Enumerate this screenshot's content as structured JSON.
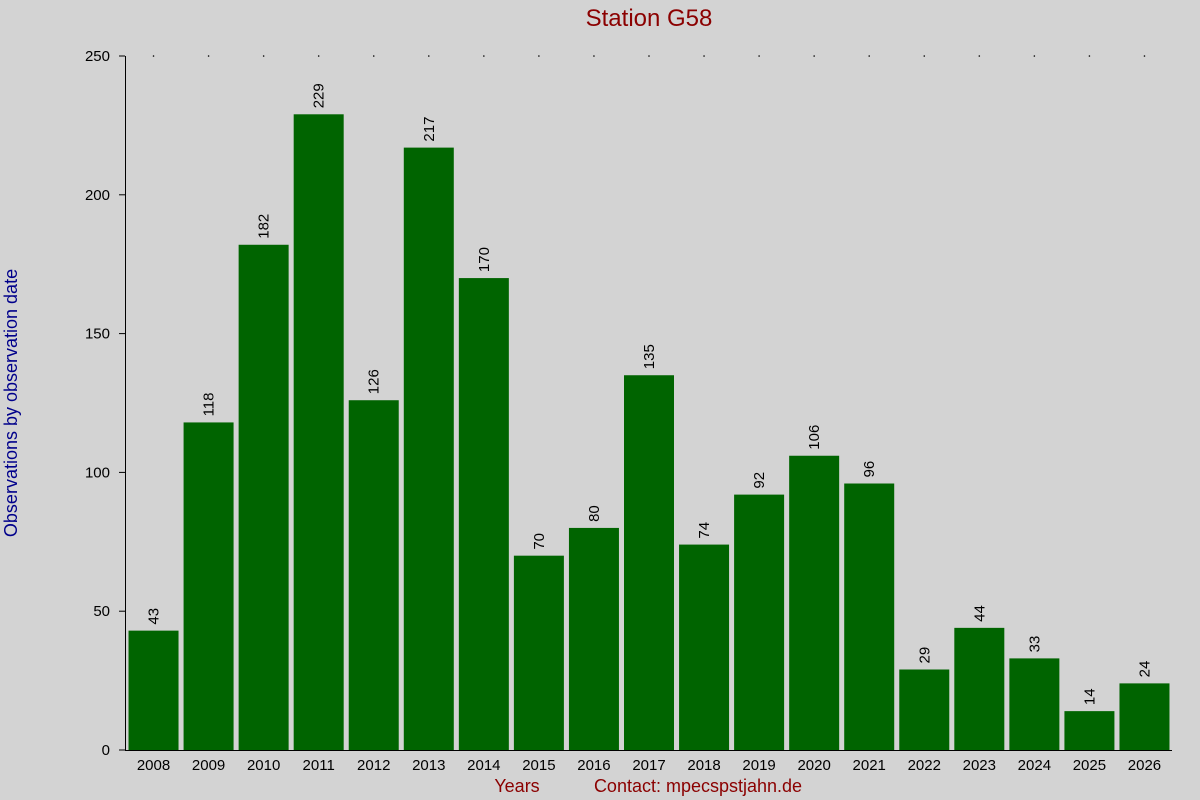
{
  "chart_data": {
    "type": "bar",
    "title": "Station G58",
    "y_label": "Observations by observation date",
    "x_label": "Years",
    "note": "Contact: mpecspstjahn.de",
    "categories": [
      "2008",
      "2009",
      "2010",
      "2011",
      "2012",
      "2013",
      "2014",
      "2015",
      "2016",
      "2017",
      "2018",
      "2019",
      "2020",
      "2021",
      "2022",
      "2023",
      "2024",
      "2025",
      "2026"
    ],
    "values": [
      43,
      118,
      182,
      229,
      126,
      217,
      170,
      70,
      80,
      135,
      74,
      92,
      106,
      96,
      29,
      44,
      33,
      14,
      24
    ],
    "color": "#006400",
    "ylim": [
      0,
      250
    ],
    "yticks": [
      0,
      50,
      100,
      150,
      200,
      250
    ]
  }
}
